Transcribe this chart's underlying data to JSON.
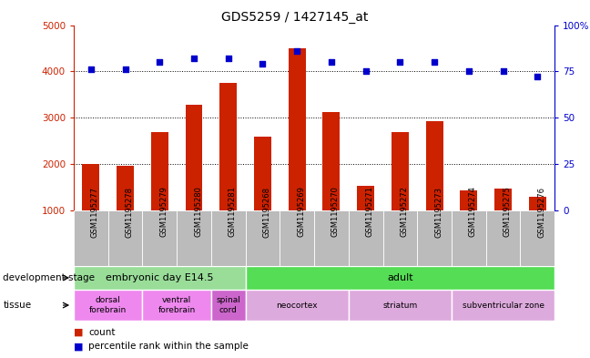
{
  "title": "GDS5259 / 1427145_at",
  "samples": [
    "GSM1195277",
    "GSM1195278",
    "GSM1195279",
    "GSM1195280",
    "GSM1195281",
    "GSM1195268",
    "GSM1195269",
    "GSM1195270",
    "GSM1195271",
    "GSM1195272",
    "GSM1195273",
    "GSM1195274",
    "GSM1195275",
    "GSM1195276"
  ],
  "counts": [
    2000,
    1950,
    2680,
    3280,
    3750,
    2580,
    4500,
    3120,
    1530,
    2680,
    2920,
    1430,
    1470,
    1290
  ],
  "percentiles": [
    76,
    76,
    80,
    82,
    82,
    79,
    86,
    80,
    75,
    80,
    80,
    75,
    75,
    72
  ],
  "ylim_left": [
    1000,
    5000
  ],
  "ylim_right": [
    0,
    100
  ],
  "yticks_left": [
    1000,
    2000,
    3000,
    4000,
    5000
  ],
  "yticks_right": [
    0,
    25,
    50,
    75,
    100
  ],
  "bar_color": "#cc2200",
  "dot_color": "#0000cc",
  "title_fontsize": 10,
  "development_stages": [
    {
      "label": "embryonic day E14.5",
      "start": 0,
      "end": 5,
      "color": "#99dd99"
    },
    {
      "label": "adult",
      "start": 5,
      "end": 14,
      "color": "#55dd55"
    }
  ],
  "tissues": [
    {
      "label": "dorsal\nforebrain",
      "start": 0,
      "end": 2,
      "color": "#ee88ee"
    },
    {
      "label": "ventral\nforebrain",
      "start": 2,
      "end": 4,
      "color": "#ee88ee"
    },
    {
      "label": "spinal\ncord",
      "start": 4,
      "end": 5,
      "color": "#cc66cc"
    },
    {
      "label": "neocortex",
      "start": 5,
      "end": 8,
      "color": "#ddaadd"
    },
    {
      "label": "striatum",
      "start": 8,
      "end": 11,
      "color": "#ddaadd"
    },
    {
      "label": "subventricular zone",
      "start": 11,
      "end": 14,
      "color": "#ddaadd"
    }
  ],
  "gridline_values": [
    2000,
    3000,
    4000
  ],
  "tick_bg_color": "#bbbbbb",
  "plot_bg_color": "#ffffff"
}
